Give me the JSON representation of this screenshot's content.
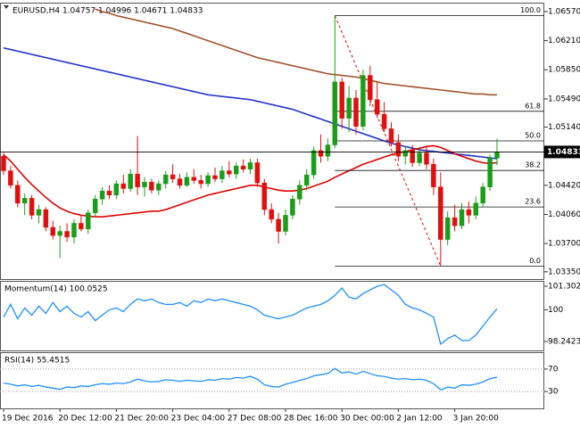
{
  "chart_data": [
    {
      "type": "candlestick",
      "title": "EURUSD,H4 1.04757 1.04996 1.04671 1.04833",
      "categories": [
        "19 Dec 2016",
        null,
        null,
        null,
        null,
        null,
        null,
        null,
        "20 Dec 12:00",
        null,
        null,
        null,
        null,
        null,
        null,
        null,
        "21 Dec 20:00",
        null,
        null,
        null,
        null,
        null,
        null,
        null,
        "23 Dec 04:00",
        null,
        null,
        null,
        null,
        null,
        null,
        null,
        "27 Dec 08:00",
        null,
        null,
        null,
        null,
        null,
        null,
        null,
        "28 Dec 16:00",
        null,
        null,
        null,
        null,
        null,
        null,
        null,
        "30 Dec 00:00",
        null,
        null,
        null,
        null,
        null,
        null,
        null,
        "2 Jan 12:00",
        null,
        null,
        null,
        null,
        null,
        null,
        null,
        "3 Jan 20:00",
        null,
        null,
        null,
        null,
        null,
        null
      ],
      "open": [
        1.0478,
        1.046,
        1.0442,
        1.042,
        1.0426,
        1.0405,
        1.0412,
        1.039,
        1.038,
        1.0385,
        1.0378,
        1.0395,
        1.0388,
        1.0408,
        1.0425,
        1.0435,
        1.043,
        1.0444,
        1.0438,
        1.0456,
        1.044,
        1.0446,
        1.0436,
        1.0444,
        1.0455,
        1.045,
        1.0442,
        1.0452,
        1.0448,
        1.0444,
        1.0454,
        1.045,
        1.046,
        1.0456,
        1.0466,
        1.0462,
        1.047,
        1.0445,
        1.0412,
        1.04,
        1.0385,
        1.0405,
        1.0425,
        1.0442,
        1.0455,
        1.0485,
        1.0478,
        1.0492,
        1.057,
        1.0525,
        1.055,
        1.0515,
        1.0578,
        1.0548,
        1.053,
        1.0512,
        1.0495,
        1.0478,
        1.0485,
        1.047,
        1.0482,
        1.0468,
        1.044,
        1.0375,
        1.0402,
        1.0392,
        1.0412,
        1.0405,
        1.042,
        1.044,
        1.04757
      ],
      "high": [
        1.0482,
        1.0466,
        1.0448,
        1.0432,
        1.043,
        1.0418,
        1.0415,
        1.0398,
        1.0392,
        1.0395,
        1.04,
        1.0405,
        1.0412,
        1.043,
        1.044,
        1.0442,
        1.0448,
        1.0455,
        1.0462,
        1.0503,
        1.0452,
        1.045,
        1.0448,
        1.046,
        1.0468,
        1.0456,
        1.0458,
        1.0462,
        1.0455,
        1.0458,
        1.0464,
        1.0466,
        1.0472,
        1.047,
        1.0474,
        1.0475,
        1.0475,
        1.045,
        1.042,
        1.0408,
        1.0412,
        1.043,
        1.0448,
        1.0462,
        1.049,
        1.0505,
        1.05,
        1.0652,
        1.0575,
        1.0565,
        1.056,
        1.0585,
        1.059,
        1.057,
        1.0545,
        1.052,
        1.0505,
        1.049,
        1.0492,
        1.0488,
        1.049,
        1.0475,
        1.0458,
        1.041,
        1.0418,
        1.042,
        1.0422,
        1.0428,
        1.0445,
        1.048,
        1.04996
      ],
      "low": [
        1.0455,
        1.0438,
        1.0415,
        1.0405,
        1.04,
        1.0395,
        1.0385,
        1.0375,
        1.0352,
        1.0372,
        1.037,
        1.0385,
        1.0382,
        1.0402,
        1.0418,
        1.0425,
        1.0425,
        1.0432,
        1.0434,
        1.043,
        1.0428,
        1.0432,
        1.043,
        1.0438,
        1.0445,
        1.0438,
        1.044,
        1.0444,
        1.0438,
        1.044,
        1.0446,
        1.0445,
        1.0452,
        1.045,
        1.0458,
        1.0456,
        1.044,
        1.0405,
        1.0395,
        1.037,
        1.038,
        1.04,
        1.0418,
        1.0436,
        1.045,
        1.047,
        1.0472,
        1.0488,
        1.0512,
        1.0508,
        1.0505,
        1.051,
        1.054,
        1.0525,
        1.0508,
        1.049,
        1.0472,
        1.0468,
        1.0465,
        1.0466,
        1.0462,
        1.043,
        1.0342,
        1.0368,
        1.0385,
        1.0388,
        1.0395,
        1.04,
        1.0415,
        1.0435,
        1.04671
      ],
      "close": [
        1.046,
        1.0442,
        1.042,
        1.0426,
        1.0405,
        1.0412,
        1.039,
        1.038,
        1.0385,
        1.0378,
        1.0395,
        1.0388,
        1.0408,
        1.0425,
        1.0435,
        1.043,
        1.0444,
        1.0438,
        1.0456,
        1.044,
        1.0446,
        1.0436,
        1.0444,
        1.0455,
        1.045,
        1.0442,
        1.0452,
        1.0448,
        1.0444,
        1.0454,
        1.045,
        1.046,
        1.0456,
        1.0466,
        1.0462,
        1.047,
        1.0445,
        1.0412,
        1.04,
        1.0385,
        1.0405,
        1.0425,
        1.0442,
        1.0455,
        1.0485,
        1.0478,
        1.0492,
        1.057,
        1.0525,
        1.055,
        1.0515,
        1.0578,
        1.0548,
        1.053,
        1.0512,
        1.0495,
        1.0478,
        1.0485,
        1.047,
        1.0482,
        1.0468,
        1.044,
        1.0375,
        1.0402,
        1.0392,
        1.0412,
        1.0405,
        1.042,
        1.044,
        1.0476,
        1.04833
      ],
      "bull_color": "#1a9e1a",
      "bear_color": "#e01010",
      "lines": [
        {
          "color": "#2233cc",
          "values": [
            1.0612,
            1.061,
            1.0608,
            1.0606,
            1.0604,
            1.0602,
            1.06,
            1.0598,
            1.0596,
            1.0594,
            1.0592,
            1.059,
            1.0588,
            1.0586,
            1.0584,
            1.0582,
            1.058,
            1.0578,
            1.0576,
            1.0574,
            1.0572,
            1.057,
            1.0568,
            1.0566,
            1.0564,
            1.0562,
            1.056,
            1.0558,
            1.0556,
            1.0554,
            1.0553,
            1.0552,
            1.0551,
            1.055,
            1.0549,
            1.0548,
            1.0546,
            1.0544,
            1.0542,
            1.054,
            1.0538,
            1.0536,
            1.0533,
            1.053,
            1.0527,
            1.0524,
            1.0521,
            1.0518,
            1.0515,
            1.0512,
            1.0509,
            1.0506,
            1.0503,
            1.05,
            1.0497,
            1.0494,
            1.0492,
            1.049,
            1.0488,
            1.0486,
            1.0485,
            1.0484,
            1.0483,
            1.0482,
            1.0481,
            1.048,
            1.0479,
            1.0478,
            1.0477,
            1.0476,
            1.0475
          ]
        },
        {
          "color": "#a0522d",
          "values": [
            null,
            null,
            null,
            null,
            null,
            null,
            null,
            null,
            null,
            null,
            null,
            null,
            null,
            1.066,
            1.0657,
            1.0655,
            1.0652,
            1.065,
            1.0648,
            1.0646,
            1.0644,
            1.0642,
            1.064,
            1.0638,
            1.0636,
            1.0633,
            1.063,
            1.0627,
            1.0624,
            1.0621,
            1.0618,
            1.0615,
            1.0612,
            1.0609,
            1.0606,
            1.0603,
            1.06,
            1.0598,
            1.0596,
            1.0594,
            1.0592,
            1.059,
            1.0588,
            1.0586,
            1.0584,
            1.0582,
            1.058,
            1.0579,
            1.0578,
            1.0577,
            1.0576,
            1.0574,
            1.0572,
            1.057,
            1.0568,
            1.0567,
            1.0566,
            1.0565,
            1.0564,
            1.0563,
            1.0562,
            1.0561,
            1.056,
            1.0559,
            1.0558,
            1.0557,
            1.0556,
            1.0555,
            1.0555,
            1.0554,
            1.0554
          ]
        },
        {
          "color": "#e00000",
          "values": [
            1.048,
            1.0472,
            1.0462,
            1.0452,
            1.0443,
            1.0435,
            1.0427,
            1.042,
            1.0414,
            1.041,
            1.0407,
            1.0405,
            1.0404,
            1.0403,
            1.0403,
            1.0404,
            1.0405,
            1.0406,
            1.0407,
            1.0408,
            1.0409,
            1.041,
            1.041,
            1.0412,
            1.0415,
            1.0418,
            1.0421,
            1.0424,
            1.0427,
            1.043,
            1.0432,
            1.0434,
            1.0436,
            1.0438,
            1.044,
            1.0442,
            1.0442,
            1.044,
            1.0438,
            1.0436,
            1.0435,
            1.0435,
            1.0436,
            1.0438,
            1.0441,
            1.0444,
            1.0447,
            1.0452,
            1.0456,
            1.046,
            1.0464,
            1.0468,
            1.0471,
            1.0474,
            1.0477,
            1.048,
            1.0482,
            1.0484,
            1.0486,
            1.0488,
            1.049,
            1.0491,
            1.0489,
            1.0485,
            1.0481,
            1.0478,
            1.0475,
            1.0472,
            1.047,
            1.0469,
            1.047
          ]
        }
      ],
      "fibonacci": {
        "color": "#e00000",
        "levels": [
          {
            "ratio": {
              "value": 100,
              "label": "100.0"
            },
            "price": 1.0652
          },
          {
            "ratio": 61.8,
            "price": 1.05336
          },
          {
            "ratio": {
              "value": 50,
              "label": "50.0"
            },
            "price": 1.0497
          },
          {
            "ratio": 38.2,
            "price": 1.04604
          },
          {
            "ratio": 23.6,
            "price": 1.04152
          },
          {
            "ratio": {
              "value": 0,
              "label": "0.0"
            },
            "price": 1.0342
          }
        ]
      },
      "last_price": 1.04833,
      "ylim": [
        1.0326,
        1.0668
      ],
      "yticks": [
        {
          "value": 1.0657,
          "label": "1.06570"
        },
        {
          "value": 1.0621,
          "label": "1.06210"
        },
        {
          "value": 1.0585,
          "label": "1.05850"
        },
        {
          "value": 1.0549,
          "label": "1.05490"
        },
        {
          "value": 1.0514,
          "label": "1.05140"
        },
        {
          "value": 1.0442,
          "label": "1.04420"
        },
        {
          "value": 1.0406,
          "label": "1.04060"
        },
        {
          "value": 1.037,
          "label": "1.03700"
        },
        {
          "value": 1.0335,
          "label": "1.03350"
        }
      ],
      "grid": false
    },
    {
      "type": "line",
      "title": "Momentum(14) 100.0525",
      "color": "#1e90ff",
      "values": [
        99.6,
        100.3,
        99.5,
        100.1,
        99.7,
        100.2,
        99.8,
        100.4,
        99.9,
        100.2,
        99.8,
        99.6,
        99.9,
        99.4,
        99.7,
        100.0,
        100.1,
        99.9,
        100.3,
        100.6,
        100.5,
        100.6,
        100.4,
        100.3,
        100.3,
        100.4,
        100.2,
        100.5,
        100.4,
        100.6,
        100.5,
        100.6,
        100.5,
        100.4,
        100.3,
        100.2,
        100.0,
        99.7,
        99.6,
        99.5,
        99.6,
        99.7,
        99.9,
        100.1,
        100.2,
        100.3,
        100.5,
        100.8,
        101.2,
        100.7,
        100.6,
        100.9,
        101.1,
        101.3,
        101.4,
        101.1,
        100.8,
        100.3,
        100.1,
        100.0,
        99.8,
        99.6,
        98.1,
        98.4,
        98.6,
        98.3,
        98.3,
        98.6,
        99.1,
        99.6,
        100.0525
      ],
      "ylim": [
        97.75,
        101.6
      ],
      "yticks": [
        101.3024,
        100,
        98.2423
      ],
      "grid": false
    },
    {
      "type": "line",
      "title": "RSI(14) 55.4515",
      "color": "#1e90ff",
      "values": [
        45,
        43,
        40,
        42,
        39,
        41,
        38,
        36,
        34,
        38,
        37,
        40,
        39,
        42,
        44,
        43,
        45,
        44,
        47,
        52,
        49,
        47,
        48,
        51,
        50,
        48,
        50,
        49,
        48,
        51,
        50,
        53,
        52,
        55,
        54,
        57,
        52,
        42,
        39,
        38,
        43,
        46,
        50,
        53,
        58,
        60,
        62,
        71,
        63,
        65,
        61,
        66,
        62,
        58,
        57,
        54,
        52,
        53,
        51,
        52,
        50,
        44,
        33,
        38,
        36,
        42,
        41,
        43,
        47,
        53,
        55.4515
      ],
      "ylim": [
        0,
        100
      ],
      "yticks": [
        70,
        30
      ],
      "grid": true
    }
  ]
}
